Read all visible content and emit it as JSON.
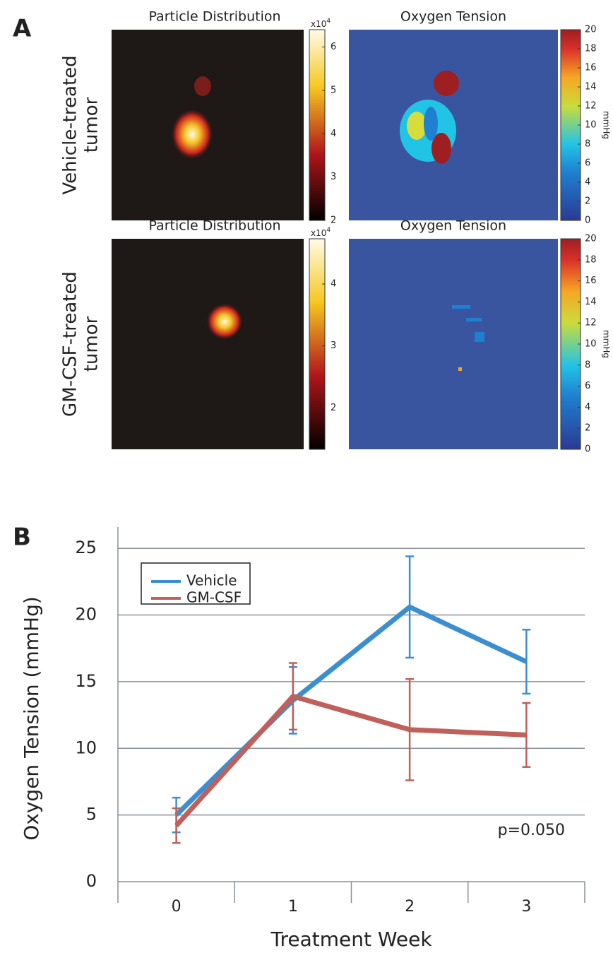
{
  "panel_a": {
    "label": "A",
    "rows": [
      {
        "row_label": [
          "Vehicle-treated",
          "tumor"
        ],
        "left_title": "Particle Distribution",
        "right_title": "Oxygen Tension",
        "particle_colorbar": {
          "multiplier": "x10",
          "exponent": "4",
          "lim": [
            2,
            6.4
          ],
          "ticks": [
            2,
            3,
            4,
            5,
            6
          ]
        },
        "oxygen_colorbar": {
          "unit": "mmHg",
          "lim": [
            0,
            20
          ],
          "ticks": [
            0,
            2,
            4,
            6,
            8,
            10,
            12,
            14,
            16,
            18,
            20
          ]
        }
      },
      {
        "row_label": [
          "GM-CSF-treated",
          "tumor"
        ],
        "left_title": "Particle Distribution",
        "right_title": "Oxygen Tension",
        "particle_colorbar": {
          "multiplier": "x10",
          "exponent": "4",
          "lim": [
            1.33,
            4.73
          ],
          "ticks": [
            2,
            3,
            4
          ]
        },
        "oxygen_colorbar": {
          "unit": "mmHg",
          "lim": [
            0,
            20
          ],
          "ticks": [
            0,
            2,
            4,
            6,
            8,
            10,
            12,
            14,
            16,
            18,
            20
          ]
        }
      }
    ]
  },
  "chart_data": {
    "type": "line",
    "panel_label": "B",
    "x_label": "Treatment Week",
    "y_label": "Oxygen Tension (mmHg)",
    "categories": [
      "0",
      "1",
      "2",
      "3"
    ],
    "ylim": [
      0,
      26.6
    ],
    "yticks": [
      0,
      5,
      10,
      15,
      20,
      25
    ],
    "grid": true,
    "legend": "upper left",
    "annotation": "p=0.050",
    "series": [
      {
        "name": "Vehicle",
        "color": "#3b8fd1",
        "values": [
          5.0,
          13.6,
          20.6,
          16.5
        ],
        "errors": [
          1.3,
          2.5,
          3.8,
          2.4
        ]
      },
      {
        "name": "GM-CSF",
        "color": "#c0605a",
        "values": [
          4.2,
          13.9,
          11.4,
          11.0
        ],
        "errors": [
          1.3,
          2.5,
          3.8,
          2.4
        ]
      }
    ]
  }
}
